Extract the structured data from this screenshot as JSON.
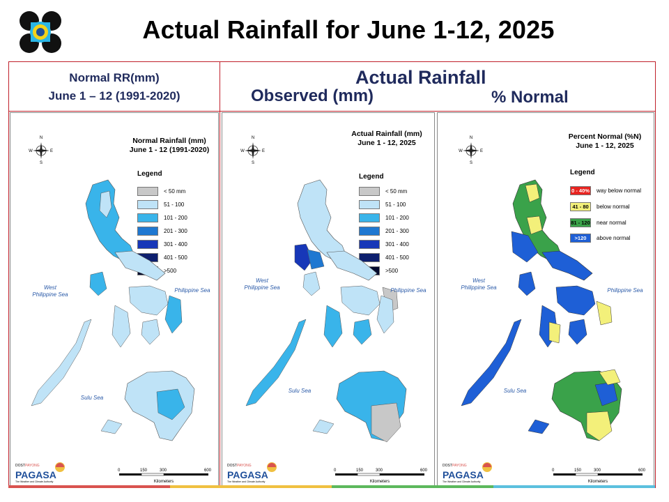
{
  "slide": {
    "title": "Actual Rainfall for June 1-12, 2025"
  },
  "header": {
    "left_line1": "Normal RR(mm)",
    "left_line2": "June 1 – 12 (1991-2020)",
    "actual_title": "Actual Rainfall",
    "observed": "Observed (mm)",
    "percent_normal": "% Normal"
  },
  "maps": [
    {
      "title_line1": "Normal Rainfall (mm)",
      "title_line2": "June 1 - 12 (1991-2020)",
      "legend_title": "Legend",
      "legend": [
        {
          "label": "< 50 mm",
          "color": "#c8c8c8"
        },
        {
          "label": "51 - 100",
          "color": "#bfe3f7"
        },
        {
          "label": "101 - 200",
          "color": "#39b4ea"
        },
        {
          "label": "201 - 300",
          "color": "#1f78d1"
        },
        {
          "label": "301 - 400",
          "color": "#1737b8"
        },
        {
          "label": "401 - 500",
          "color": "#0d1f6e"
        },
        {
          "label": ">500",
          "color": "#030a2e"
        }
      ],
      "sea_west": "West\nPhilippine Sea",
      "sea_east": "Philippine Sea",
      "sea_sulu": "Sulu Sea"
    },
    {
      "title_line1": "Actual Rainfall (mm)",
      "title_line2": "June 1 - 12, 2025",
      "legend_title": "Legend",
      "legend": [
        {
          "label": "< 50 mm",
          "color": "#c8c8c8"
        },
        {
          "label": "51 - 100",
          "color": "#bfe3f7"
        },
        {
          "label": "101 - 200",
          "color": "#39b4ea"
        },
        {
          "label": "201 - 300",
          "color": "#1f78d1"
        },
        {
          "label": "301 - 400",
          "color": "#1737b8"
        },
        {
          "label": "401 - 500",
          "color": "#0d1f6e"
        },
        {
          "label": ">500",
          "color": "#030a2e"
        }
      ],
      "sea_west": "West\nPhilippine Sea",
      "sea_east": "Philippine Sea",
      "sea_sulu": "Sulu Sea"
    },
    {
      "title_line1": "Percent Normal (%N)",
      "title_line2": "June 1 - 12, 2025",
      "legend_title": "Legend",
      "legend": [
        {
          "swatch": "0 - 40%",
          "label": "way below normal",
          "color": "#e8231f",
          "text_color": "#ffffff"
        },
        {
          "swatch": "41 - 80",
          "label": "below normal",
          "color": "#f3f07a",
          "text_color": "#000000"
        },
        {
          "swatch": "81 - 120",
          "label": "near normal",
          "color": "#3aa24a",
          "text_color": "#000000"
        },
        {
          "swatch": ">120",
          "label": "above normal",
          "color": "#1e5fd6",
          "text_color": "#ffffff"
        }
      ],
      "sea_west": "West\nPhilippine Sea",
      "sea_east": "Philippine Sea",
      "sea_sulu": "Sulu Sea"
    }
  ],
  "compass": {
    "n": "N",
    "s": "S",
    "e": "E",
    "w": "W"
  },
  "scale": {
    "ticks": [
      "0",
      "150",
      "300",
      "600"
    ],
    "unit": "Kilometers"
  },
  "branding": {
    "dost": "DOST",
    "payong": "PAYONG",
    "pagasa": "PAGASA",
    "tagline": "The Weather and Climate Authority"
  },
  "colors": {
    "frame": "#c0202a",
    "strip": [
      "#d9534f",
      "#f0c040",
      "#5cb85c",
      "#5bc0de"
    ]
  }
}
